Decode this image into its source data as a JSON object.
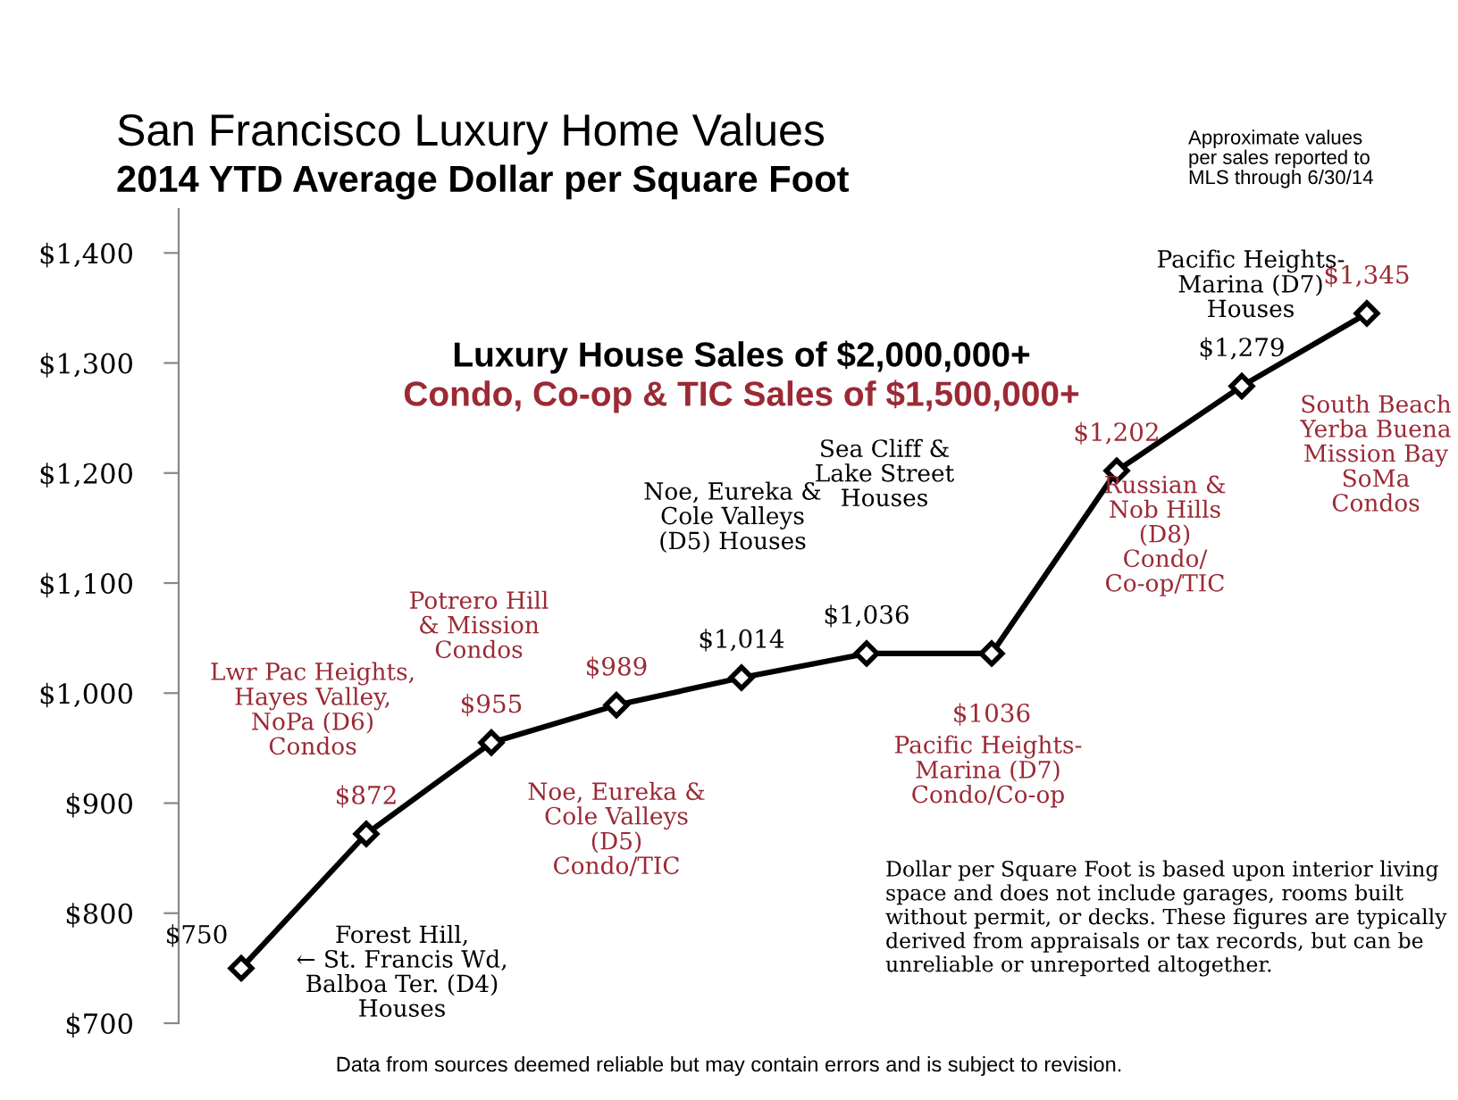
{
  "chart_data": {
    "type": "line",
    "title": "San Francisco Luxury Home Values",
    "subtitle": "2014 YTD Average Dollar per Square Foot",
    "categories": [
      null,
      null,
      null,
      null,
      null,
      null,
      null,
      null,
      null,
      null
    ],
    "series": [
      {
        "color": "#000000",
        "values": [
          750,
          872,
          955,
          989,
          1014,
          1036,
          1036,
          1202,
          1279,
          1345
        ],
        "value_labels": [
          "$750",
          "$872",
          "$955",
          "$989",
          "$1,014",
          "$1,036",
          "$1036",
          "$1,202",
          "$1,279",
          "$1,345"
        ]
      }
    ],
    "marker": "diamond",
    "line_style": "solid",
    "grid": false,
    "legend": false,
    "tick_labels": "y",
    "ylim": [
      700,
      1440
    ],
    "yticks": [
      {
        "value": 700,
        "label": "$700"
      },
      {
        "value": 800,
        "label": "$800"
      },
      {
        "value": 900,
        "label": "$900"
      },
      {
        "value": 1000,
        "label": "$1,000"
      },
      {
        "value": 1100,
        "label": "$1,100"
      },
      {
        "value": 1200,
        "label": "$1,200"
      },
      {
        "value": 1300,
        "label": "$1,300"
      },
      {
        "value": 1400,
        "label": "$1,400"
      }
    ],
    "annotations": [
      "Luxury House Sales of $2,000,000+",
      "Condo, Co-op & TIC Sales of $1,500,000+",
      "Forest Hill,\n← St. Francis Wd,\nBalboa Ter. (D4)\nHouses",
      "Lwr Pac Heights,\nHayes Valley,\nNoPa (D6)\nCondos",
      "Potrero Hill\n& Mission\nCondos",
      "Noe, Eureka &\nCole Valleys\n(D5)\nCondo/TIC",
      "Noe, Eureka &\nCole Valleys\n(D5) Houses",
      "Sea Cliff &\nLake Street\nHouses",
      "Pacific Heights-\nMarina (D7)\nCondo/Co-op",
      "Russian &\nNob Hills\n(D8)\nCondo/\nCo-op/TIC",
      "Pacific Heights-\nMarina (D7)\nHouses",
      "South Beach\nYerba Buena\nMission Bay\nSoMa\nCondos",
      "Dollar per Square Foot is based upon interior living space and does not include garages, rooms built without permit, or decks. These figures are typically derived from appraisals or tax records, but can be unreliable or unreported altogether.",
      "Data from sources deemed reliable but may contain errors and is subject to revision.",
      "Approximate values\nper sales reported to\nMLS through 6/30/14"
    ]
  }
}
